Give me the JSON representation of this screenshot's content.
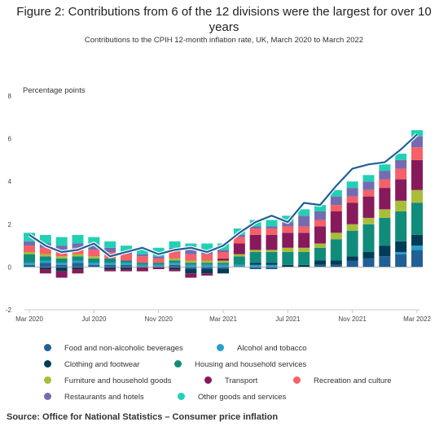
{
  "chart_data": {
    "type": "bar",
    "title": "Figure 2: Contributions from 6 of the 12 divisions were the largest for over 10 years",
    "subtitle": "Contributions to the CPIH 12-month inflation rate, UK, March 2020 to March 2022",
    "ylabel": "Percentage points",
    "ylim": [
      -2,
      8
    ],
    "yticks": [
      "-2",
      "0",
      "2",
      "4",
      "6",
      "8"
    ],
    "grid": false,
    "legend_position": "bottom",
    "categories": [
      "Mar 2020",
      "Apr 2020",
      "May 2020",
      "Jun 2020",
      "Jul 2020",
      "Aug 2020",
      "Sep 2020",
      "Oct 2020",
      "Nov 2020",
      "Dec 2020",
      "Jan 2021",
      "Feb 2021",
      "Mar 2021",
      "Apr 2021",
      "May 2021",
      "Jun 2021",
      "Jul 2021",
      "Aug 2021",
      "Sep 2021",
      "Oct 2021",
      "Nov 2021",
      "Dec 2021",
      "Jan 2022",
      "Feb 2022",
      "Mar 2022"
    ],
    "x_tick_labels": [
      {
        "index": 0,
        "label": "Mar 2020"
      },
      {
        "index": 4,
        "label": "Jul 2020"
      },
      {
        "index": 8,
        "label": "Nov 2020"
      },
      {
        "index": 12,
        "label": "Mar 2021"
      },
      {
        "index": 16,
        "label": "Jul 2021"
      },
      {
        "index": 20,
        "label": "Nov 2021"
      },
      {
        "index": 24,
        "label": "Mar 2022"
      }
    ],
    "series": [
      {
        "name": "Food and non-alcoholic beverages",
        "color": "#206095",
        "values": [
          0.1,
          0.2,
          0.1,
          0.2,
          0.1,
          0.1,
          0.1,
          0.0,
          0.0,
          0.1,
          -0.1,
          -0.1,
          -0.1,
          0.0,
          -0.1,
          -0.1,
          0.0,
          0.0,
          0.1,
          0.1,
          0.3,
          0.4,
          0.5,
          0.6,
          0.8
        ]
      },
      {
        "name": "Alcohol and tobacco",
        "color": "#27a0cc",
        "values": [
          0.1,
          0.1,
          0.1,
          0.1,
          0.1,
          0.1,
          0.1,
          0.1,
          0.1,
          0.1,
          0.1,
          0.1,
          0.1,
          0.1,
          0.1,
          0.1,
          0.0,
          0.0,
          0.0,
          0.0,
          0.0,
          0.0,
          0.0,
          0.1,
          0.2
        ]
      },
      {
        "name": "Clothing and footwear",
        "color": "#003c57",
        "values": [
          0.0,
          -0.1,
          -0.2,
          -0.1,
          0.0,
          -0.1,
          -0.1,
          0.0,
          0.0,
          -0.1,
          -0.2,
          -0.2,
          -0.2,
          0.0,
          0.1,
          0.1,
          0.1,
          0.1,
          0.2,
          0.2,
          0.2,
          0.3,
          0.5,
          0.5,
          0.5
        ]
      },
      {
        "name": "Housing and household services",
        "color": "#118c7b",
        "values": [
          0.4,
          0.2,
          0.2,
          0.2,
          0.2,
          0.2,
          0.1,
          0.1,
          0.1,
          0.1,
          0.1,
          0.1,
          0.1,
          0.4,
          0.5,
          0.5,
          0.6,
          0.6,
          0.6,
          1.0,
          1.2,
          1.3,
          1.3,
          1.4,
          1.5
        ]
      },
      {
        "name": "Furniture and household goods",
        "color": "#a8bd3a",
        "values": [
          0.1,
          0.1,
          0.1,
          0.1,
          0.1,
          0.0,
          0.0,
          0.0,
          0.0,
          0.1,
          0.1,
          0.1,
          0.1,
          0.1,
          0.1,
          0.1,
          0.2,
          0.2,
          0.2,
          0.3,
          0.3,
          0.3,
          0.4,
          0.5,
          0.6
        ]
      },
      {
        "name": "Transport",
        "color": "#871a5b",
        "values": [
          0.0,
          -0.2,
          -0.3,
          -0.2,
          0.0,
          -0.1,
          -0.1,
          -0.2,
          -0.1,
          -0.1,
          -0.2,
          -0.1,
          0.1,
          0.5,
          0.7,
          0.7,
          0.7,
          0.7,
          0.8,
          1.0,
          1.0,
          1.0,
          1.0,
          1.0,
          1.4
        ]
      },
      {
        "name": "Recreation and culture",
        "color": "#f66068",
        "values": [
          0.3,
          0.3,
          0.3,
          0.3,
          0.3,
          0.3,
          0.3,
          0.3,
          0.2,
          0.3,
          0.3,
          0.3,
          0.3,
          0.3,
          0.3,
          0.3,
          0.3,
          0.3,
          0.3,
          0.3,
          0.3,
          0.3,
          0.4,
          0.5,
          0.6
        ]
      },
      {
        "name": "Restaurants and hotels",
        "color": "#746cb1",
        "values": [
          0.2,
          0.2,
          0.2,
          0.2,
          0.2,
          0.2,
          0.1,
          0.1,
          0.1,
          0.2,
          0.2,
          0.2,
          0.1,
          0.1,
          0.1,
          0.1,
          0.2,
          0.5,
          0.4,
          0.4,
          0.4,
          0.4,
          0.4,
          0.4,
          0.5
        ]
      },
      {
        "name": "Other goods and services",
        "color": "#22d0b6",
        "values": [
          0.4,
          0.4,
          0.4,
          0.4,
          0.4,
          0.3,
          0.3,
          0.3,
          0.4,
          0.3,
          0.3,
          0.3,
          0.3,
          0.3,
          0.3,
          0.3,
          0.3,
          0.3,
          0.3,
          0.3,
          0.3,
          0.3,
          0.3,
          0.3,
          0.3
        ]
      }
    ],
    "total_line": {
      "color": "#206095",
      "values": [
        1.5,
        1.0,
        0.7,
        0.8,
        1.1,
        0.5,
        0.7,
        0.9,
        0.6,
        0.8,
        0.9,
        0.7,
        1.0,
        1.6,
        2.1,
        2.4,
        2.1,
        3.0,
        2.9,
        3.8,
        4.6,
        4.8,
        4.9,
        5.5,
        6.2
      ]
    }
  },
  "legend": [
    {
      "label": "Food and non-alcoholic beverages",
      "color": "#206095"
    },
    {
      "label": "Alcohol and tobacco",
      "color": "#27a0cc"
    },
    {
      "label": "Clothing and footwear",
      "color": "#003c57"
    },
    {
      "label": "Housing and household services",
      "color": "#118c7b"
    },
    {
      "label": "Furniture and household goods",
      "color": "#a8bd3a"
    },
    {
      "label": "Transport",
      "color": "#871a5b"
    },
    {
      "label": "Recreation and culture",
      "color": "#f66068"
    },
    {
      "label": "Restaurants and hotels",
      "color": "#746cb1"
    },
    {
      "label": "Other goods and services",
      "color": "#22d0b6"
    }
  ],
  "source": "Source: Office for National Statistics – Consumer price inflation"
}
